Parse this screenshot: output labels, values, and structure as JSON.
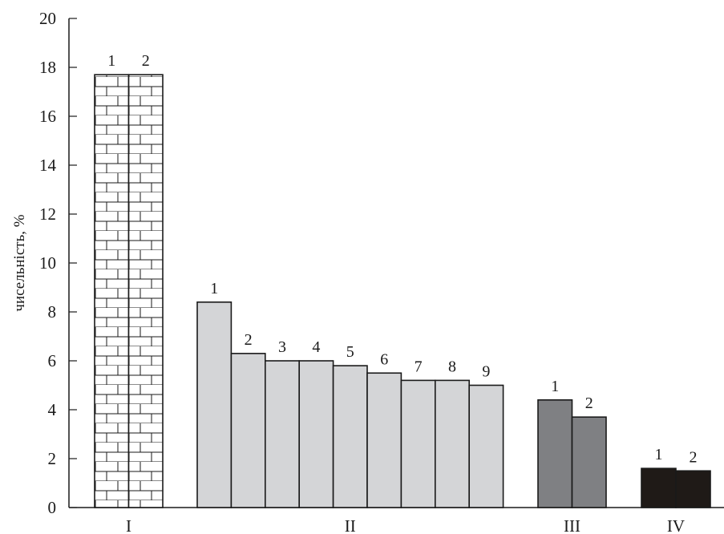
{
  "chart_data": {
    "type": "bar",
    "title": "",
    "xlabel": "",
    "ylabel": "чисельність, %",
    "ylim": [
      0,
      20
    ],
    "yticks": [
      0,
      2,
      4,
      6,
      8,
      10,
      12,
      14,
      16,
      18,
      20
    ],
    "grid": false,
    "groups": [
      {
        "label": "I",
        "style": "brick-pattern",
        "bars": [
          {
            "label": "1",
            "value": 17.7
          },
          {
            "label": "2",
            "value": 17.7
          }
        ]
      },
      {
        "label": "II",
        "style": "light-gray",
        "bars": [
          {
            "label": "1",
            "value": 8.4
          },
          {
            "label": "2",
            "value": 6.3
          },
          {
            "label": "3",
            "value": 6.0
          },
          {
            "label": "4",
            "value": 6.0
          },
          {
            "label": "5",
            "value": 5.8
          },
          {
            "label": "6",
            "value": 5.5
          },
          {
            "label": "7",
            "value": 5.2
          },
          {
            "label": "8",
            "value": 5.2
          },
          {
            "label": "9",
            "value": 5.0
          }
        ]
      },
      {
        "label": "III",
        "style": "dark-gray",
        "bars": [
          {
            "label": "1",
            "value": 4.4
          },
          {
            "label": "2",
            "value": 3.7
          }
        ]
      },
      {
        "label": "IV",
        "style": "black",
        "bars": [
          {
            "label": "1",
            "value": 1.6
          },
          {
            "label": "2",
            "value": 1.5
          }
        ]
      }
    ],
    "colors": {
      "light-gray": "#d4d5d7",
      "dark-gray": "#7f8083",
      "black": "#1f1a17",
      "brick-fill": "#ffffff",
      "outline": "#1a1a1a"
    }
  }
}
